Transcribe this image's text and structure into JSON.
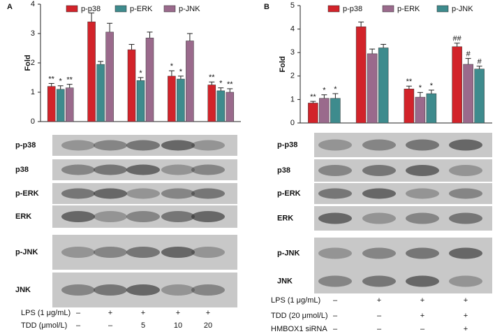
{
  "chart_data": [
    {
      "type": "bar",
      "panel": "A",
      "y_label": "Fold",
      "categories": [
        null,
        null,
        null,
        null,
        null
      ],
      "series": [
        {
          "name": "p-p38",
          "color": "#d2232a",
          "values": [
            1.2,
            3.4,
            2.45,
            1.55,
            1.25
          ],
          "errors": [
            0.1,
            0.3,
            0.18,
            0.18,
            0.1
          ],
          "annotations": [
            "**",
            null,
            null,
            "*",
            "**"
          ]
        },
        {
          "name": "p-ERK",
          "color": "#3e8b8d",
          "values": [
            1.1,
            1.95,
            1.4,
            1.45,
            1.05
          ],
          "errors": [
            0.12,
            0.1,
            0.1,
            0.1,
            0.1
          ],
          "annotations": [
            "*",
            null,
            "*",
            "*",
            "*"
          ]
        },
        {
          "name": "p-JNK",
          "color": "#9a6a8c",
          "values": [
            1.15,
            3.05,
            2.85,
            2.75,
            1.0
          ],
          "errors": [
            0.12,
            0.3,
            0.2,
            0.25,
            0.12
          ],
          "annotations": [
            "**",
            null,
            null,
            null,
            "**"
          ]
        }
      ],
      "ylim": [
        0,
        4
      ],
      "yticks": [
        0,
        1,
        2,
        3,
        4
      ]
    },
    {
      "type": "bar",
      "panel": "B",
      "y_label": "Fold",
      "categories": [
        null,
        null,
        null,
        null
      ],
      "series": [
        {
          "name": "p-p38",
          "color": "#d2232a",
          "values": [
            0.85,
            4.1,
            1.45,
            3.25
          ],
          "errors": [
            0.07,
            0.2,
            0.12,
            0.15
          ],
          "annotations": [
            "**",
            null,
            "**",
            "##"
          ]
        },
        {
          "name": "p-ERK",
          "color": "#9a6a8c",
          "values": [
            1.05,
            2.95,
            1.1,
            2.5
          ],
          "errors": [
            0.15,
            0.2,
            0.2,
            0.25
          ],
          "annotations": [
            "*",
            null,
            "*",
            "#"
          ]
        },
        {
          "name": "p-JNK",
          "color": "#3e8b8d",
          "values": [
            1.05,
            3.2,
            1.25,
            2.3
          ],
          "errors": [
            0.2,
            0.15,
            0.15,
            0.12
          ],
          "annotations": [
            "*",
            null,
            "*",
            "#"
          ]
        }
      ],
      "ylim": [
        0,
        5
      ],
      "yticks": [
        0,
        1,
        2,
        3,
        4,
        5
      ]
    }
  ],
  "blots": [
    {
      "rows": [
        "p-p38",
        "p38",
        "p-ERK",
        "ERK",
        "p-JNK",
        "JNK"
      ],
      "treatments": [
        {
          "label": "LPS (1 μg/mL)",
          "values": [
            "–",
            "+",
            "+",
            "+",
            "+"
          ]
        },
        {
          "label": "TDD (μmol/L)",
          "values": [
            "–",
            "–",
            "5",
            "10",
            "20"
          ]
        }
      ]
    },
    {
      "rows": [
        "p-p38",
        "p38",
        "p-ERK",
        "ERK",
        "p-JNK",
        "JNK"
      ],
      "treatments": [
        {
          "label": "LPS (1 μg/mL)",
          "values": [
            "–",
            "+",
            "+",
            "+"
          ]
        },
        {
          "label": "TDD (20 μmol/L)",
          "values": [
            "–",
            "–",
            "+",
            "+"
          ]
        },
        {
          "label": "HMBOX1 siRNA",
          "values": [
            "–",
            "–",
            "–",
            "+"
          ]
        }
      ]
    }
  ]
}
